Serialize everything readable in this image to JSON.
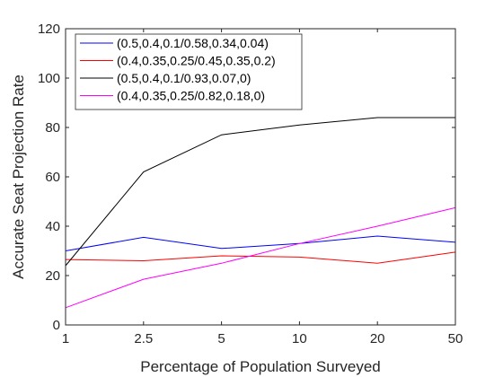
{
  "chart_data": {
    "type": "line",
    "title": "",
    "xlabel": "Percentage of Population Surveyed",
    "ylabel": "Accurate Seat Projection Rate",
    "categories": [
      "1",
      "2.5",
      "5",
      "10",
      "20",
      "50"
    ],
    "ylim": [
      0,
      120
    ],
    "yticks": [
      "0",
      "20",
      "40",
      "60",
      "80",
      "100",
      "120"
    ],
    "grid": false,
    "legend_position": "top-left",
    "series": [
      {
        "name": "(0.5,0.4,0.1/0.58,0.34,0.04)",
        "color": "#0000ff",
        "values": [
          30,
          35.5,
          31,
          33,
          36,
          33.5
        ]
      },
      {
        "name": "(0.4,0.35,0.25/0.45,0.35,0.2)",
        "color": "#ff0000",
        "values": [
          26.5,
          26,
          28,
          27.5,
          25,
          29.5
        ]
      },
      {
        "name": "(0.5,0.4,0.1/0.93,0.07,0)",
        "color": "#000000",
        "values": [
          24,
          62,
          77,
          81,
          84,
          84
        ]
      },
      {
        "name": "(0.4,0.35,0.25/0.82,0.18,0)",
        "color": "#ff00ff",
        "values": [
          7,
          18.5,
          25,
          33,
          40,
          47.5
        ]
      }
    ]
  }
}
